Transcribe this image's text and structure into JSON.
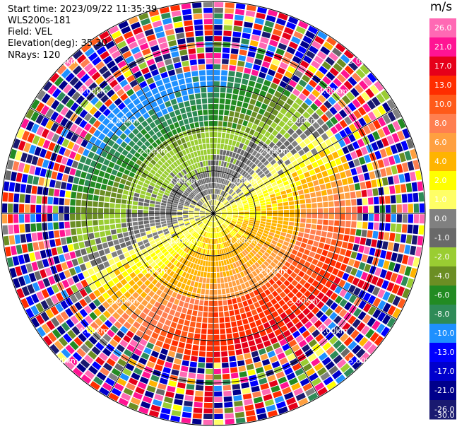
{
  "info": {
    "start_time": "Start time: 2023/09/22 11:35:39",
    "site": "WLS200s-181",
    "field": "Field: VEL",
    "elevation": "Elevation(deg): 35.30",
    "nrays": "NRays: 120"
  },
  "range_rings": [
    "1.00km",
    "2.00km",
    "3.00km",
    "4.00km",
    "5.00km"
  ],
  "colorbar": {
    "unit": "m/s",
    "ticks": [
      "26.0",
      "21.0",
      "17.0",
      "13.0",
      "10.0",
      "8.0",
      "6.0",
      "4.0",
      "2.0",
      "1.0",
      "0.0",
      "-1.0",
      "-2.0",
      "-4.0",
      "-6.0",
      "-8.0",
      "-10.0",
      "-13.0",
      "-17.0",
      "-21.0",
      "-26.0",
      "-30.0"
    ],
    "colors": [
      "#ff69b4",
      "#ff1493",
      "#e6001a",
      "#ff2d00",
      "#ff5a1a",
      "#ff7f50",
      "#ffa040",
      "#ffb400",
      "#ffff00",
      "#ffff66",
      "#808080",
      "#696969",
      "#9acd32",
      "#6b8e23",
      "#228b22",
      "#2e8b57",
      "#1e90ff",
      "#0000ff",
      "#0000cd",
      "#00008b",
      "#191970"
    ]
  }
}
